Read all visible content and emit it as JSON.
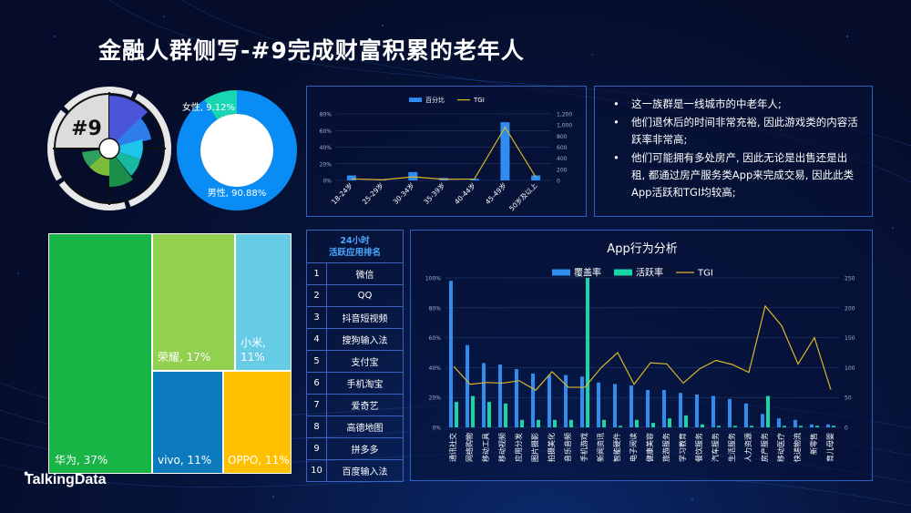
{
  "title": "金融人群侧写-#9完成财富积累的老年人",
  "badge": "#9",
  "logo": "TalkingData",
  "gender": {
    "female_label": "女性, 9.12%",
    "male_label": "男性, 90.88%",
    "female": 9.12,
    "male": 90.88,
    "colors": {
      "female": "#19d6b3",
      "male": "#0a8cf5"
    }
  },
  "bullets": [
    "这一族群是一线城市的中老年人;",
    "他们退休后的时间非常充裕, 因此游戏类的内容活跃率非常高;",
    "他们可能拥有多处房产, 因此无论是出售还是出租, 都通过房产服务类App来完成交易, 因此此类App活跃和TGI均较高;"
  ],
  "ranking": {
    "header_line1": "24小时",
    "header_line2": "活跃应用排名",
    "rows": [
      {
        "num": "1",
        "app": "微信"
      },
      {
        "num": "2",
        "app": "QQ"
      },
      {
        "num": "3",
        "app": "抖音短视频"
      },
      {
        "num": "4",
        "app": "搜狗输入法"
      },
      {
        "num": "5",
        "app": "支付宝"
      },
      {
        "num": "6",
        "app": "手机淘宝"
      },
      {
        "num": "7",
        "app": "爱奇艺"
      },
      {
        "num": "8",
        "app": "高德地图"
      },
      {
        "num": "9",
        "app": "拼多多"
      },
      {
        "num": "10",
        "app": "百度输入法"
      }
    ]
  },
  "brands": [
    {
      "label": "华为, 37%",
      "value": 37,
      "color": "#18b446"
    },
    {
      "label": "荣耀, 17%",
      "value": 17,
      "color": "#92d14f"
    },
    {
      "label": "小米, 11%",
      "value": 11,
      "color": "#66cce6"
    },
    {
      "label": "vivo, 11%",
      "value": 11,
      "color": "#0c7bbd"
    },
    {
      "label": "OPPO, 11%",
      "value": 11,
      "color": "#ffc000"
    }
  ],
  "chart_data": [
    {
      "type": "bar",
      "legend": [
        "百分比",
        "TGI"
      ],
      "categories": [
        "18-24岁",
        "25-29岁",
        "30-34岁",
        "35-39岁",
        "40-44岁",
        "45-49岁",
        "50岁及以上"
      ],
      "series": [
        {
          "name": "百分比",
          "values": [
            6,
            1,
            10,
            3,
            2,
            70,
            6
          ],
          "axis": "left",
          "color": "#2f8cf0"
        },
        {
          "name": "TGI",
          "values": [
            28,
            12,
            64,
            20,
            26,
            960,
            58
          ],
          "axis": "right",
          "color": "#d9b62b"
        }
      ],
      "y_left_ticks": [
        "0%",
        "20%",
        "40%",
        "60%",
        "80%"
      ],
      "y_left_max": 80,
      "y_right_ticks": [
        "0",
        "200",
        "400",
        "600",
        "800",
        "1,000",
        "1,200"
      ],
      "y_right_max": 1200
    },
    {
      "type": "bar",
      "title": "App行为分析",
      "legend": [
        "覆盖率",
        "活跃率",
        "TGI"
      ],
      "categories": [
        "通讯社交",
        "网络购物",
        "移动工具",
        "移动视频",
        "应用分发",
        "图片摄影",
        "拍摄美化",
        "音乐音频",
        "手机游戏",
        "新闻资讯",
        "智能硬件",
        "电子阅读",
        "健康美容",
        "旅游服务",
        "学习教育",
        "餐饮服务",
        "汽车服务",
        "生活服务",
        "人力资源",
        "房产服务",
        "移动医疗",
        "快递物流",
        "新零售",
        "育儿母婴"
      ],
      "series": [
        {
          "name": "覆盖率",
          "values": [
            98,
            55,
            43,
            42,
            39,
            36,
            35,
            35,
            34,
            30,
            29,
            28,
            25,
            25,
            23,
            22,
            21,
            19,
            16,
            9,
            6,
            5,
            2,
            2
          ],
          "axis": "left",
          "color": "#2f8cf0"
        },
        {
          "name": "活跃率",
          "values": [
            17,
            21,
            17,
            16,
            5,
            5,
            5,
            5,
            100,
            5,
            1,
            5,
            3,
            6,
            8,
            2,
            1,
            1,
            1,
            21,
            1,
            1,
            1,
            1
          ],
          "axis": "left",
          "color": "#19d6a6"
        },
        {
          "name": "TGI",
          "values": [
            102,
            72,
            75,
            74,
            78,
            62,
            93,
            67,
            67,
            100,
            125,
            72,
            108,
            106,
            74,
            98,
            112,
            105,
            92,
            203,
            170,
            106,
            150,
            63
          ],
          "axis": "right",
          "color": "#d9b62b"
        }
      ],
      "y_left_ticks": [
        "0%",
        "20%",
        "40%",
        "60%",
        "80%",
        "100%"
      ],
      "y_left_max": 100,
      "y_right_ticks": [
        "0",
        "50",
        "100",
        "150",
        "200",
        "250"
      ],
      "y_right_max": 250
    }
  ]
}
